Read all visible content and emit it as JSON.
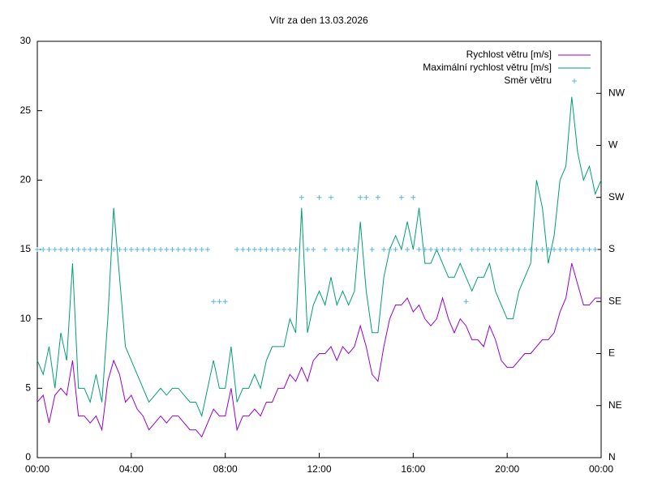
{
  "chart_data": {
    "type": "line",
    "title": "Vítr za den 13.03.2026",
    "x": [
      0,
      0.25,
      0.5,
      0.75,
      1,
      1.25,
      1.5,
      1.75,
      2,
      2.25,
      2.5,
      2.75,
      3,
      3.25,
      3.5,
      3.75,
      4,
      4.25,
      4.5,
      4.75,
      5,
      5.25,
      5.5,
      5.75,
      6,
      6.25,
      6.5,
      6.75,
      7,
      7.25,
      7.5,
      7.75,
      8,
      8.25,
      8.5,
      8.75,
      9,
      9.25,
      9.5,
      9.75,
      10,
      10.25,
      10.5,
      10.75,
      11,
      11.25,
      11.5,
      11.75,
      12,
      12.25,
      12.5,
      12.75,
      13,
      13.25,
      13.5,
      13.75,
      14,
      14.25,
      14.5,
      14.75,
      15,
      15.25,
      15.5,
      15.75,
      16,
      16.25,
      16.5,
      16.75,
      17,
      17.25,
      17.5,
      17.75,
      18,
      18.25,
      18.5,
      18.75,
      19,
      19.25,
      19.5,
      19.75,
      20,
      20.25,
      20.5,
      20.75,
      21,
      21.25,
      21.5,
      21.75,
      22,
      22.25,
      22.5,
      22.75,
      23,
      23.25,
      23.5,
      23.75,
      24
    ],
    "series": [
      {
        "name": "Rychlost větru [m/s]",
        "color": "#9400d3",
        "type": "line",
        "values": [
          4,
          4.5,
          2.5,
          4.5,
          5,
          4.5,
          7,
          3,
          3,
          2.5,
          3,
          2,
          5.5,
          7,
          6,
          4,
          4.5,
          3.5,
          3,
          2,
          2.5,
          3,
          2.5,
          3,
          3,
          2.5,
          2,
          2,
          1.5,
          2.5,
          3.5,
          3,
          3,
          5,
          2,
          3,
          3,
          3.5,
          3,
          4,
          4,
          5,
          5,
          6,
          5.5,
          6.5,
          5.5,
          7,
          7.5,
          7.5,
          8,
          7,
          8,
          7.5,
          8,
          9.5,
          8,
          6,
          5.5,
          8,
          10,
          11,
          11,
          11.5,
          10.5,
          11,
          10,
          9.5,
          10,
          11.5,
          10,
          9,
          10,
          9.5,
          8.5,
          8.5,
          8,
          9.5,
          8.5,
          7,
          6.5,
          6.5,
          7,
          7.5,
          7.5,
          8,
          8.5,
          8.5,
          9,
          10.5,
          11.5,
          14,
          12.5,
          11,
          11,
          11.5,
          11.5
        ]
      },
      {
        "name": "Maximální rychlost větru [m/s]",
        "color": "#009e73",
        "type": "line",
        "values": [
          7,
          6,
          8,
          5,
          9,
          7,
          14,
          5,
          5,
          4,
          6,
          4,
          10,
          18,
          13,
          8,
          7,
          6,
          5,
          4,
          4.5,
          5,
          4.5,
          5,
          5,
          4.5,
          4,
          4,
          3,
          5,
          7,
          5,
          5,
          8,
          4,
          5,
          5,
          6,
          5,
          7,
          8,
          8,
          8,
          10,
          9,
          18,
          9,
          11,
          12,
          11,
          13,
          11,
          12,
          11,
          12,
          17,
          12,
          9,
          9,
          13,
          15,
          16,
          15,
          17,
          15,
          18,
          14,
          14,
          15,
          14,
          13,
          13,
          14,
          13,
          12,
          13,
          13,
          14,
          12,
          11,
          10,
          10,
          12,
          13,
          14,
          20,
          18,
          14,
          16,
          20,
          21,
          26,
          22,
          20,
          21,
          19,
          20
        ]
      },
      {
        "name": "Směr větru",
        "color": "#56b4e9",
        "type": "scatter",
        "axis": "y2",
        "values": [
          180,
          180,
          180,
          180,
          180,
          180,
          180,
          180,
          180,
          180,
          180,
          180,
          180,
          180,
          180,
          180,
          180,
          180,
          180,
          180,
          180,
          180,
          180,
          180,
          180,
          180,
          180,
          180,
          180,
          180,
          135,
          135,
          135,
          null,
          180,
          180,
          180,
          180,
          180,
          180,
          180,
          180,
          180,
          180,
          180,
          225,
          180,
          180,
          225,
          180,
          225,
          180,
          180,
          180,
          180,
          225,
          225,
          180,
          225,
          180,
          180,
          180,
          225,
          180,
          225,
          180,
          180,
          180,
          180,
          180,
          180,
          180,
          180,
          135,
          180,
          180,
          180,
          180,
          180,
          180,
          180,
          180,
          180,
          180,
          180,
          180,
          180,
          180,
          180,
          180,
          180,
          180,
          180,
          180,
          180,
          180,
          null
        ]
      }
    ],
    "xlim": [
      0,
      24
    ],
    "xticks": [
      {
        "value": 0,
        "label": "00:00"
      },
      {
        "value": 4,
        "label": "04:00"
      },
      {
        "value": 8,
        "label": "08:00"
      },
      {
        "value": 12,
        "label": "12:00"
      },
      {
        "value": 16,
        "label": "16:00"
      },
      {
        "value": 20,
        "label": "20:00"
      },
      {
        "value": 24,
        "label": "00:00"
      }
    ],
    "ylim": [
      0,
      30
    ],
    "yticks": [
      0,
      5,
      10,
      15,
      20,
      25,
      30
    ],
    "y2lim": [
      0,
      360
    ],
    "y2ticks": [
      {
        "value": 0,
        "label": "N"
      },
      {
        "value": 45,
        "label": "NE"
      },
      {
        "value": 90,
        "label": "E"
      },
      {
        "value": 135,
        "label": "SE"
      },
      {
        "value": 180,
        "label": "S"
      },
      {
        "value": 225,
        "label": "SW"
      },
      {
        "value": 270,
        "label": "W"
      },
      {
        "value": 315,
        "label": "NW"
      }
    ],
    "legend": "top-right"
  }
}
